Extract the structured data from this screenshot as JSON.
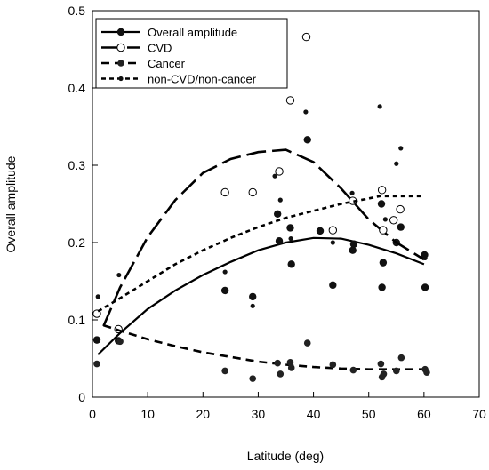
{
  "chart_data": {
    "type": "scatter",
    "title": "",
    "xlabel": "Latitude (deg)",
    "ylabel": "Overall amplitude",
    "xlim": [
      0,
      70
    ],
    "ylim": [
      0,
      0.5
    ],
    "xticks": [
      0,
      10,
      20,
      30,
      40,
      50,
      60,
      70
    ],
    "yticks": [
      0,
      0.1,
      0.2,
      0.3,
      0.4,
      0.5
    ],
    "grid": false,
    "legend_position": "top-left",
    "series": [
      {
        "name": "Overall amplitude",
        "marker": "filled-circle",
        "line_style": "solid",
        "points": [
          [
            0.8,
            0.074
          ],
          [
            4.7,
            0.073
          ],
          [
            24,
            0.138
          ],
          [
            29,
            0.13
          ],
          [
            33.5,
            0.237
          ],
          [
            33.8,
            0.202
          ],
          [
            35.8,
            0.219
          ],
          [
            36,
            0.172
          ],
          [
            38.9,
            0.333
          ],
          [
            41.2,
            0.215
          ],
          [
            43.5,
            0.145
          ],
          [
            47.1,
            0.19
          ],
          [
            47.3,
            0.198
          ],
          [
            52.3,
            0.25
          ],
          [
            52.4,
            0.142
          ],
          [
            52.6,
            0.174
          ],
          [
            55,
            0.2
          ],
          [
            55.8,
            0.22
          ],
          [
            60.1,
            0.184
          ],
          [
            60.2,
            0.142
          ]
        ],
        "curve": [
          [
            1,
            0.055
          ],
          [
            5,
            0.083
          ],
          [
            10,
            0.114
          ],
          [
            15,
            0.138
          ],
          [
            20,
            0.158
          ],
          [
            25,
            0.175
          ],
          [
            30,
            0.19
          ],
          [
            35,
            0.2
          ],
          [
            40,
            0.206
          ],
          [
            45,
            0.205
          ],
          [
            50,
            0.197
          ],
          [
            55,
            0.186
          ],
          [
            60,
            0.172
          ]
        ]
      },
      {
        "name": "CVD",
        "marker": "open-circle",
        "line_style": "long-dash",
        "points": [
          [
            0.8,
            0.108
          ],
          [
            4.7,
            0.088
          ],
          [
            24,
            0.265
          ],
          [
            29,
            0.265
          ],
          [
            33.5,
            0.41
          ],
          [
            33.8,
            0.292
          ],
          [
            35.8,
            0.384
          ],
          [
            38.7,
            0.466
          ],
          [
            43.5,
            0.216
          ],
          [
            47.1,
            0.254
          ],
          [
            52.4,
            0.268
          ],
          [
            52.6,
            0.216
          ],
          [
            54.5,
            0.229
          ],
          [
            55.7,
            0.243
          ]
        ],
        "curve": [
          [
            2,
            0.092
          ],
          [
            5,
            0.142
          ],
          [
            10,
            0.207
          ],
          [
            15,
            0.255
          ],
          [
            20,
            0.29
          ],
          [
            25,
            0.308
          ],
          [
            30,
            0.317
          ],
          [
            35,
            0.32
          ],
          [
            40,
            0.304
          ],
          [
            45,
            0.27
          ],
          [
            50,
            0.23
          ],
          [
            55,
            0.2
          ],
          [
            60,
            0.178
          ]
        ]
      },
      {
        "name": "Cancer",
        "marker": "small-filled-circle",
        "line_style": "dash",
        "points": [
          [
            0.8,
            0.043
          ],
          [
            5,
            0.072
          ],
          [
            24,
            0.034
          ],
          [
            29,
            0.024
          ],
          [
            33.5,
            0.044
          ],
          [
            34,
            0.03
          ],
          [
            35.8,
            0.045
          ],
          [
            36,
            0.038
          ],
          [
            38.9,
            0.07
          ],
          [
            43.5,
            0.042
          ],
          [
            47.2,
            0.035
          ],
          [
            52.2,
            0.043
          ],
          [
            52.4,
            0.026
          ],
          [
            52.7,
            0.03
          ],
          [
            55,
            0.034
          ],
          [
            55.9,
            0.051
          ],
          [
            60.2,
            0.036
          ],
          [
            60.5,
            0.032
          ]
        ],
        "curve": [
          [
            2,
            0.093
          ],
          [
            5,
            0.086
          ],
          [
            10,
            0.075
          ],
          [
            15,
            0.066
          ],
          [
            20,
            0.058
          ],
          [
            25,
            0.052
          ],
          [
            30,
            0.046
          ],
          [
            35,
            0.042
          ],
          [
            40,
            0.039
          ],
          [
            45,
            0.037
          ],
          [
            50,
            0.036
          ],
          [
            55,
            0.036
          ],
          [
            60,
            0.036
          ]
        ]
      },
      {
        "name": "non-CVD/non-cancer",
        "marker": "tiny-filled-dot",
        "line_style": "short-dash",
        "points": [
          [
            1,
            0.13
          ],
          [
            4.8,
            0.158
          ],
          [
            24,
            0.162
          ],
          [
            29,
            0.118
          ],
          [
            33,
            0.286
          ],
          [
            34,
            0.255
          ],
          [
            35.9,
            0.205
          ],
          [
            38.6,
            0.369
          ],
          [
            43.5,
            0.2
          ],
          [
            47,
            0.264
          ],
          [
            52,
            0.376
          ],
          [
            53,
            0.23
          ],
          [
            55,
            0.302
          ],
          [
            55.8,
            0.322
          ],
          [
            60.2,
            0.18
          ]
        ],
        "curve": [
          [
            1,
            0.111
          ],
          [
            5,
            0.128
          ],
          [
            10,
            0.15
          ],
          [
            15,
            0.172
          ],
          [
            20,
            0.19
          ],
          [
            25,
            0.206
          ],
          [
            30,
            0.22
          ],
          [
            35,
            0.232
          ],
          [
            40,
            0.241
          ],
          [
            45,
            0.25
          ],
          [
            50,
            0.257
          ],
          [
            52,
            0.26
          ],
          [
            60,
            0.26
          ]
        ]
      }
    ]
  }
}
